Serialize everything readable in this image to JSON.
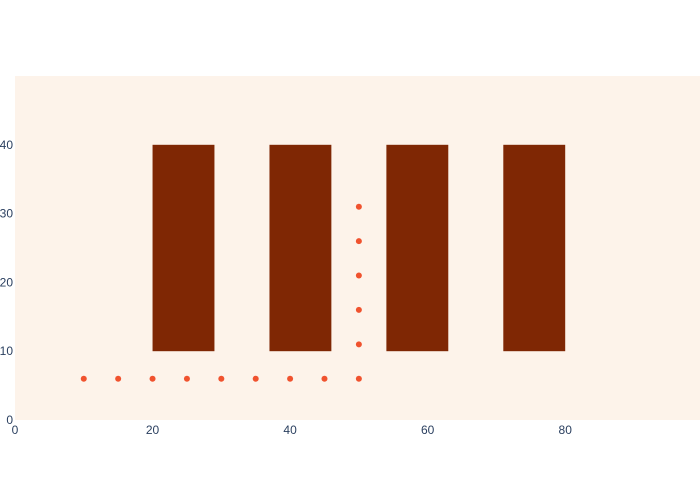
{
  "chart_data": {
    "type": "scatter",
    "title": "",
    "xlabel": "",
    "ylabel": "",
    "xlim": [
      0,
      100
    ],
    "ylim": [
      0,
      50
    ],
    "x_ticks": [
      0,
      20,
      40,
      60,
      80
    ],
    "y_ticks": [
      0,
      10,
      20,
      30,
      40
    ],
    "grid": false,
    "legend": false,
    "colors": {
      "plot_background": "#fdf3ea",
      "shape_fill": "#7f2704",
      "marker": "#f0522e",
      "tick_text": "#2a3f5f"
    },
    "rectangles": [
      {
        "x0": 20,
        "x1": 29,
        "y0": 10,
        "y1": 40
      },
      {
        "x0": 37,
        "x1": 46,
        "y0": 10,
        "y1": 40
      },
      {
        "x0": 54,
        "x1": 63,
        "y0": 10,
        "y1": 40
      },
      {
        "x0": 71,
        "x1": 80,
        "y0": 10,
        "y1": 40
      }
    ],
    "points": [
      {
        "x": 10,
        "y": 6
      },
      {
        "x": 15,
        "y": 6
      },
      {
        "x": 20,
        "y": 6
      },
      {
        "x": 25,
        "y": 6
      },
      {
        "x": 30,
        "y": 6
      },
      {
        "x": 35,
        "y": 6
      },
      {
        "x": 40,
        "y": 6
      },
      {
        "x": 45,
        "y": 6
      },
      {
        "x": 50,
        "y": 6
      },
      {
        "x": 50,
        "y": 11
      },
      {
        "x": 50,
        "y": 16
      },
      {
        "x": 50,
        "y": 21
      },
      {
        "x": 50,
        "y": 26
      },
      {
        "x": 50,
        "y": 31
      }
    ]
  }
}
